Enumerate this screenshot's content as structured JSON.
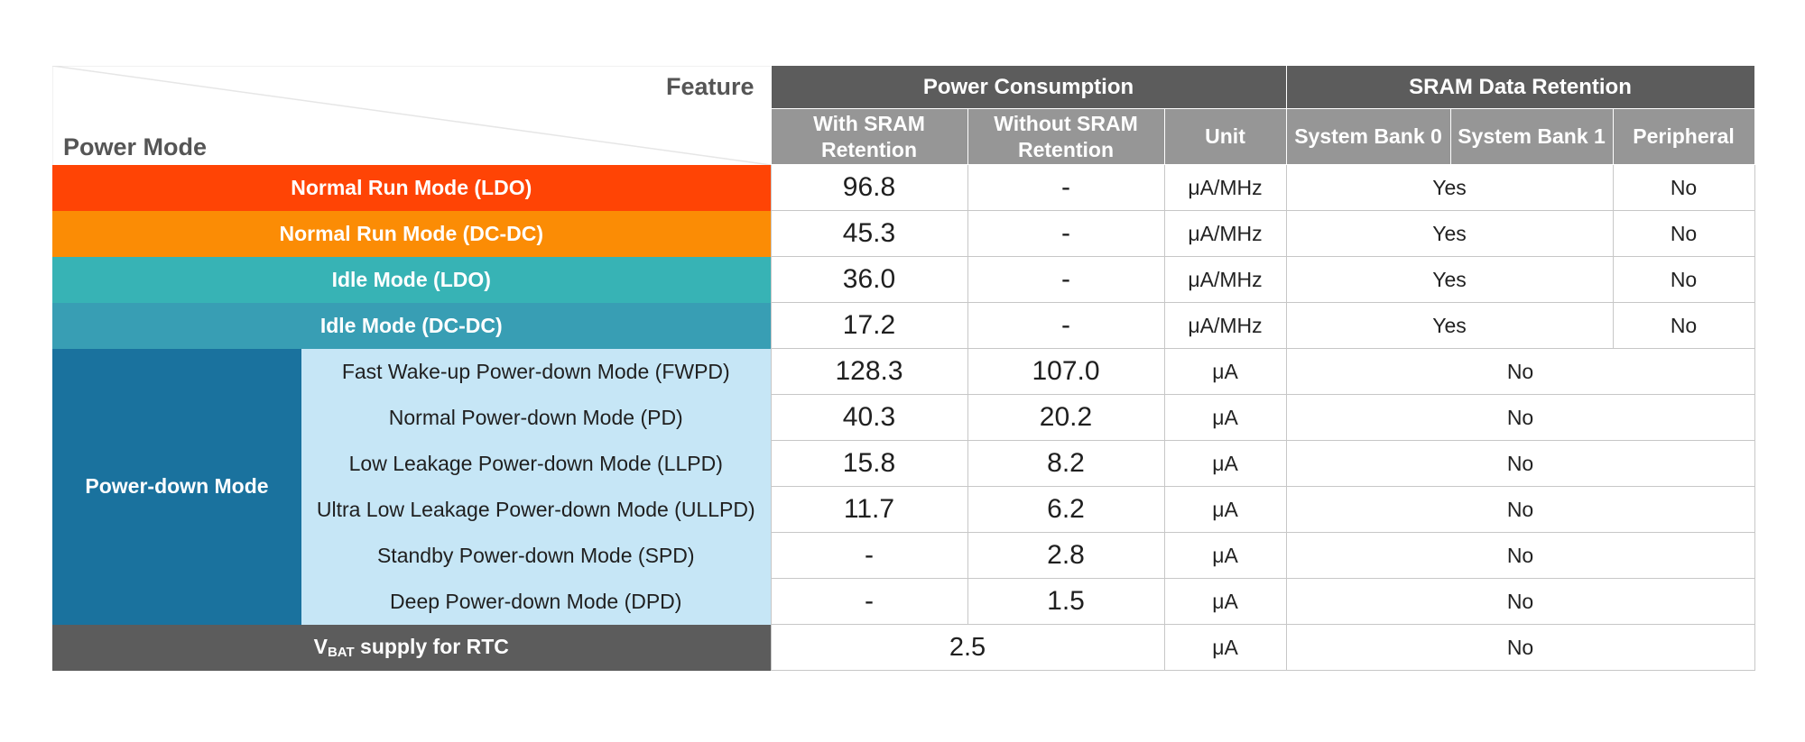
{
  "corner": {
    "feature": "Feature",
    "power_mode": "Power Mode"
  },
  "headers": {
    "power_consumption": "Power Consumption",
    "sram_data_retention": "SRAM Data Retention",
    "with_sram": "With SRAM Retention",
    "without_sram": "Without SRAM Retention",
    "unit": "Unit",
    "bank0": "System Bank 0",
    "bank1": "System Bank 1",
    "peripheral": "Peripheral"
  },
  "colors": {
    "normal_ldo": "#ff4405",
    "normal_dcdc": "#fb8c05",
    "idle_ldo": "#37b3b5",
    "idle_dcdc": "#389eb4",
    "powerdown": "#1a729e",
    "vbat": "#5c5c5c"
  },
  "rows_top": [
    {
      "mode": "Normal Run Mode (LDO)",
      "with": "96.8",
      "without": "-",
      "unit": "μA/MHz",
      "banks": "Yes",
      "peripheral": "No"
    },
    {
      "mode": "Normal Run Mode (DC-DC)",
      "with": "45.3",
      "without": "-",
      "unit": "μA/MHz",
      "banks": "Yes",
      "peripheral": "No"
    },
    {
      "mode": "Idle Mode (LDO)",
      "with": "36.0",
      "without": "-",
      "unit": "μA/MHz",
      "banks": "Yes",
      "peripheral": "No"
    },
    {
      "mode": "Idle Mode (DC-DC)",
      "with": "17.2",
      "without": "-",
      "unit": "μA/MHz",
      "banks": "Yes",
      "peripheral": "No"
    }
  ],
  "powerdown": {
    "group_label": "Power-down Mode",
    "rows": [
      {
        "mode": "Fast Wake-up Power-down Mode (FWPD)",
        "with": "128.3",
        "without": "107.0",
        "unit": "μA",
        "retention": "No"
      },
      {
        "mode": "Normal Power-down Mode (PD)",
        "with": "40.3",
        "without": "20.2",
        "unit": "μA",
        "retention": "No"
      },
      {
        "mode": "Low Leakage Power-down Mode (LLPD)",
        "with": "15.8",
        "without": "8.2",
        "unit": "μA",
        "retention": "No"
      },
      {
        "mode": "Ultra Low Leakage Power-down Mode (ULLPD)",
        "with": "11.7",
        "without": "6.2",
        "unit": "μA",
        "retention": "No"
      },
      {
        "mode": "Standby Power-down Mode (SPD)",
        "with": "-",
        "without": "2.8",
        "unit": "μA",
        "retention": "No"
      },
      {
        "mode": "Deep Power-down Mode (DPD)",
        "with": "-",
        "without": "1.5",
        "unit": "μA",
        "retention": "No"
      }
    ]
  },
  "vbat": {
    "v": "V",
    "sub": "BAT",
    "rest": " supply for RTC",
    "value": "2.5",
    "unit": "μA",
    "retention": "No"
  }
}
